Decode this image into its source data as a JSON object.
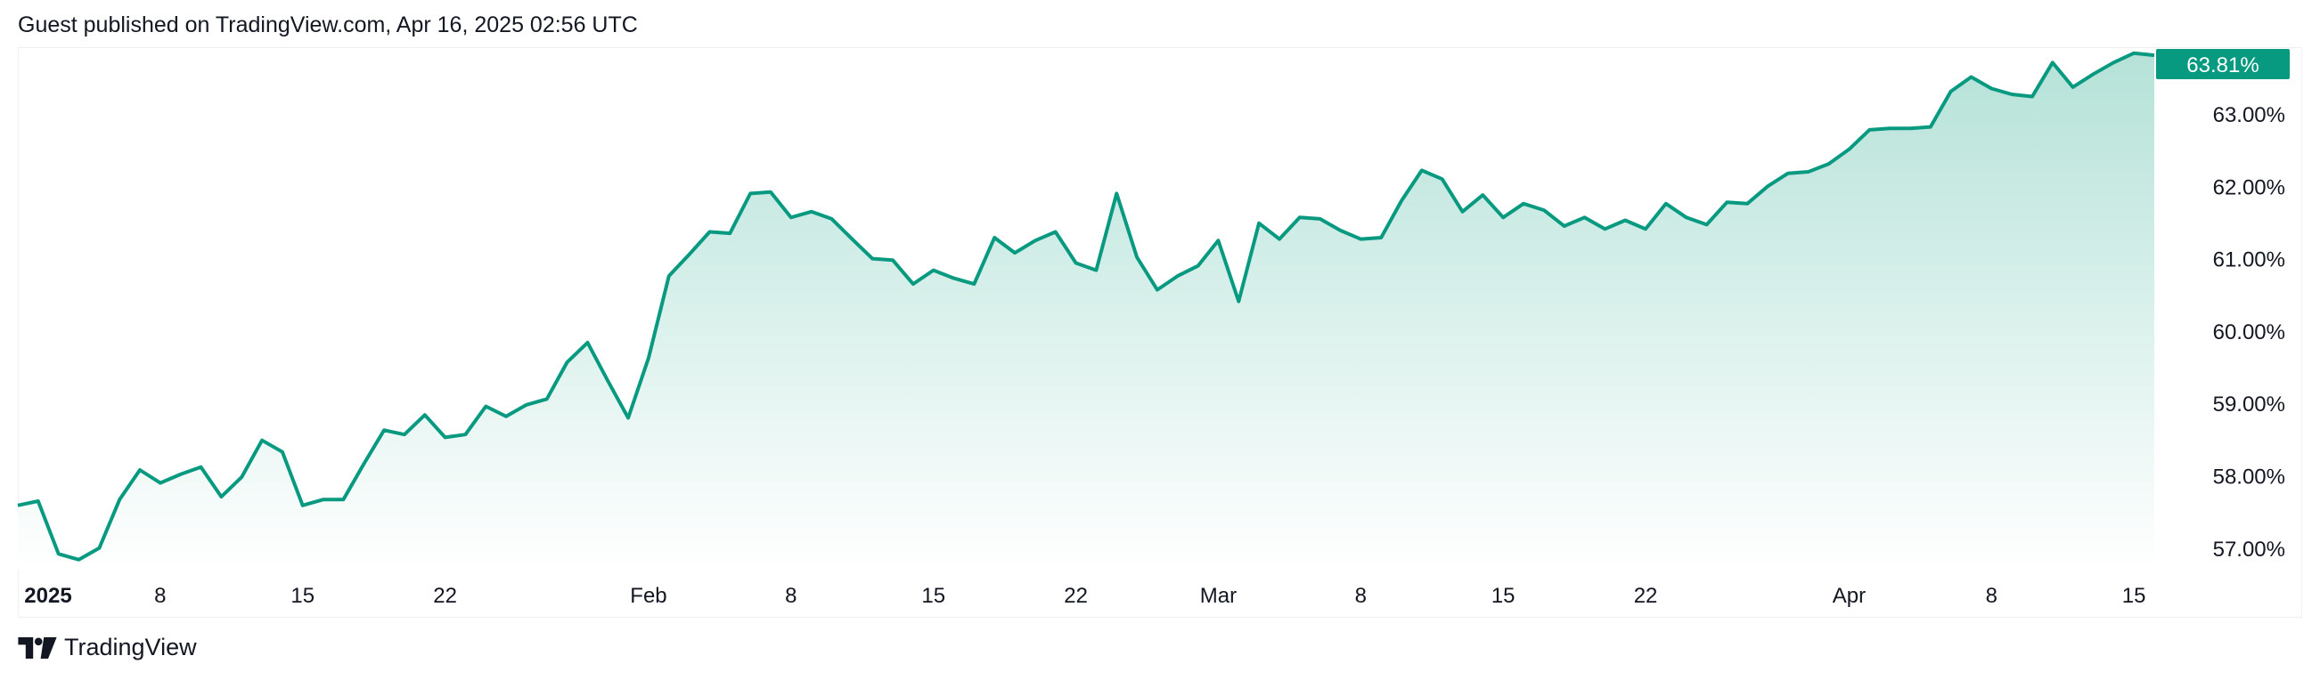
{
  "header": {
    "title": "Guest published on TradingView.com, Apr 16, 2025 02:56 UTC"
  },
  "footer": {
    "logo_text": "TradingView"
  },
  "colors": {
    "line": "#089981",
    "fill_top": "#b5e2d8",
    "badge": "#089981",
    "badge_text": "#ffffff"
  },
  "chart_data": {
    "type": "area",
    "title": "",
    "xlabel": "",
    "ylabel": "",
    "ylim": [
      56.6,
      64.0
    ],
    "grid": false,
    "y_ticks": [
      "63.00%",
      "62.00%",
      "61.00%",
      "60.00%",
      "59.00%",
      "58.00%",
      "57.00%"
    ],
    "y_tick_values": [
      63,
      62,
      61,
      60,
      59,
      58,
      57
    ],
    "x_ticks": [
      {
        "label": "2025",
        "date": "2025-01-01",
        "bold": true
      },
      {
        "label": "8",
        "date": "2025-01-08"
      },
      {
        "label": "15",
        "date": "2025-01-15"
      },
      {
        "label": "22",
        "date": "2025-01-22"
      },
      {
        "label": "Feb",
        "date": "2025-02-01"
      },
      {
        "label": "8",
        "date": "2025-02-08"
      },
      {
        "label": "15",
        "date": "2025-02-15"
      },
      {
        "label": "22",
        "date": "2025-02-22"
      },
      {
        "label": "Mar",
        "date": "2025-03-01"
      },
      {
        "label": "8",
        "date": "2025-03-08"
      },
      {
        "label": "15",
        "date": "2025-03-15"
      },
      {
        "label": "22",
        "date": "2025-03-22"
      },
      {
        "label": "Apr",
        "date": "2025-04-01"
      },
      {
        "label": "8",
        "date": "2025-04-08"
      },
      {
        "label": "15",
        "date": "2025-04-15"
      }
    ],
    "last_value_label": "63.81%",
    "x": [
      "2025-01-01",
      "2025-01-02",
      "2025-01-03",
      "2025-01-04",
      "2025-01-05",
      "2025-01-06",
      "2025-01-07",
      "2025-01-08",
      "2025-01-09",
      "2025-01-10",
      "2025-01-11",
      "2025-01-12",
      "2025-01-13",
      "2025-01-14",
      "2025-01-15",
      "2025-01-16",
      "2025-01-17",
      "2025-01-18",
      "2025-01-19",
      "2025-01-20",
      "2025-01-21",
      "2025-01-22",
      "2025-01-23",
      "2025-01-24",
      "2025-01-25",
      "2025-01-26",
      "2025-01-27",
      "2025-01-28",
      "2025-01-29",
      "2025-01-30",
      "2025-01-31",
      "2025-02-01",
      "2025-02-02",
      "2025-02-03",
      "2025-02-04",
      "2025-02-05",
      "2025-02-06",
      "2025-02-07",
      "2025-02-08",
      "2025-02-09",
      "2025-02-10",
      "2025-02-11",
      "2025-02-12",
      "2025-02-13",
      "2025-02-14",
      "2025-02-15",
      "2025-02-16",
      "2025-02-17",
      "2025-02-18",
      "2025-02-19",
      "2025-02-20",
      "2025-02-21",
      "2025-02-22",
      "2025-02-23",
      "2025-02-24",
      "2025-02-25",
      "2025-02-26",
      "2025-02-27",
      "2025-02-28",
      "2025-03-01",
      "2025-03-02",
      "2025-03-03",
      "2025-03-04",
      "2025-03-05",
      "2025-03-06",
      "2025-03-07",
      "2025-03-08",
      "2025-03-09",
      "2025-03-10",
      "2025-03-11",
      "2025-03-12",
      "2025-03-13",
      "2025-03-14",
      "2025-03-15",
      "2025-03-16",
      "2025-03-17",
      "2025-03-18",
      "2025-03-19",
      "2025-03-20",
      "2025-03-21",
      "2025-03-22",
      "2025-03-23",
      "2025-03-24",
      "2025-03-25",
      "2025-03-26",
      "2025-03-27",
      "2025-03-28",
      "2025-03-29",
      "2025-03-30",
      "2025-03-31",
      "2025-04-01",
      "2025-04-02",
      "2025-04-03",
      "2025-04-04",
      "2025-04-05",
      "2025-04-06",
      "2025-04-07",
      "2025-04-08",
      "2025-04-09",
      "2025-04-10",
      "2025-04-11",
      "2025-04-12",
      "2025-04-13",
      "2025-04-14",
      "2025-04-15",
      "2025-04-16"
    ],
    "values": [
      57.59,
      57.65,
      56.92,
      56.84,
      57.0,
      57.67,
      58.08,
      57.9,
      58.02,
      58.12,
      57.71,
      57.98,
      58.49,
      58.33,
      57.59,
      57.67,
      57.67,
      58.16,
      58.63,
      58.57,
      58.84,
      58.53,
      58.57,
      58.96,
      58.82,
      58.98,
      59.06,
      59.57,
      59.84,
      59.31,
      58.8,
      59.63,
      60.76,
      61.06,
      61.37,
      61.35,
      61.9,
      61.92,
      61.57,
      61.65,
      61.55,
      61.27,
      61.0,
      60.98,
      60.65,
      60.84,
      60.73,
      60.65,
      61.29,
      61.08,
      61.25,
      61.37,
      60.94,
      60.84,
      61.9,
      61.02,
      60.57,
      60.76,
      60.9,
      61.25,
      60.41,
      61.49,
      61.27,
      61.57,
      61.55,
      61.39,
      61.27,
      61.29,
      61.8,
      62.22,
      62.1,
      61.65,
      61.88,
      61.57,
      61.76,
      61.67,
      61.45,
      61.57,
      61.41,
      61.53,
      61.41,
      61.76,
      61.57,
      61.47,
      61.78,
      61.76,
      62.0,
      62.18,
      62.2,
      62.31,
      62.51,
      62.78,
      62.8,
      62.8,
      62.82,
      63.31,
      63.51,
      63.35,
      63.27,
      63.24,
      63.71,
      63.37,
      63.55,
      63.71,
      63.84,
      63.81
    ]
  }
}
